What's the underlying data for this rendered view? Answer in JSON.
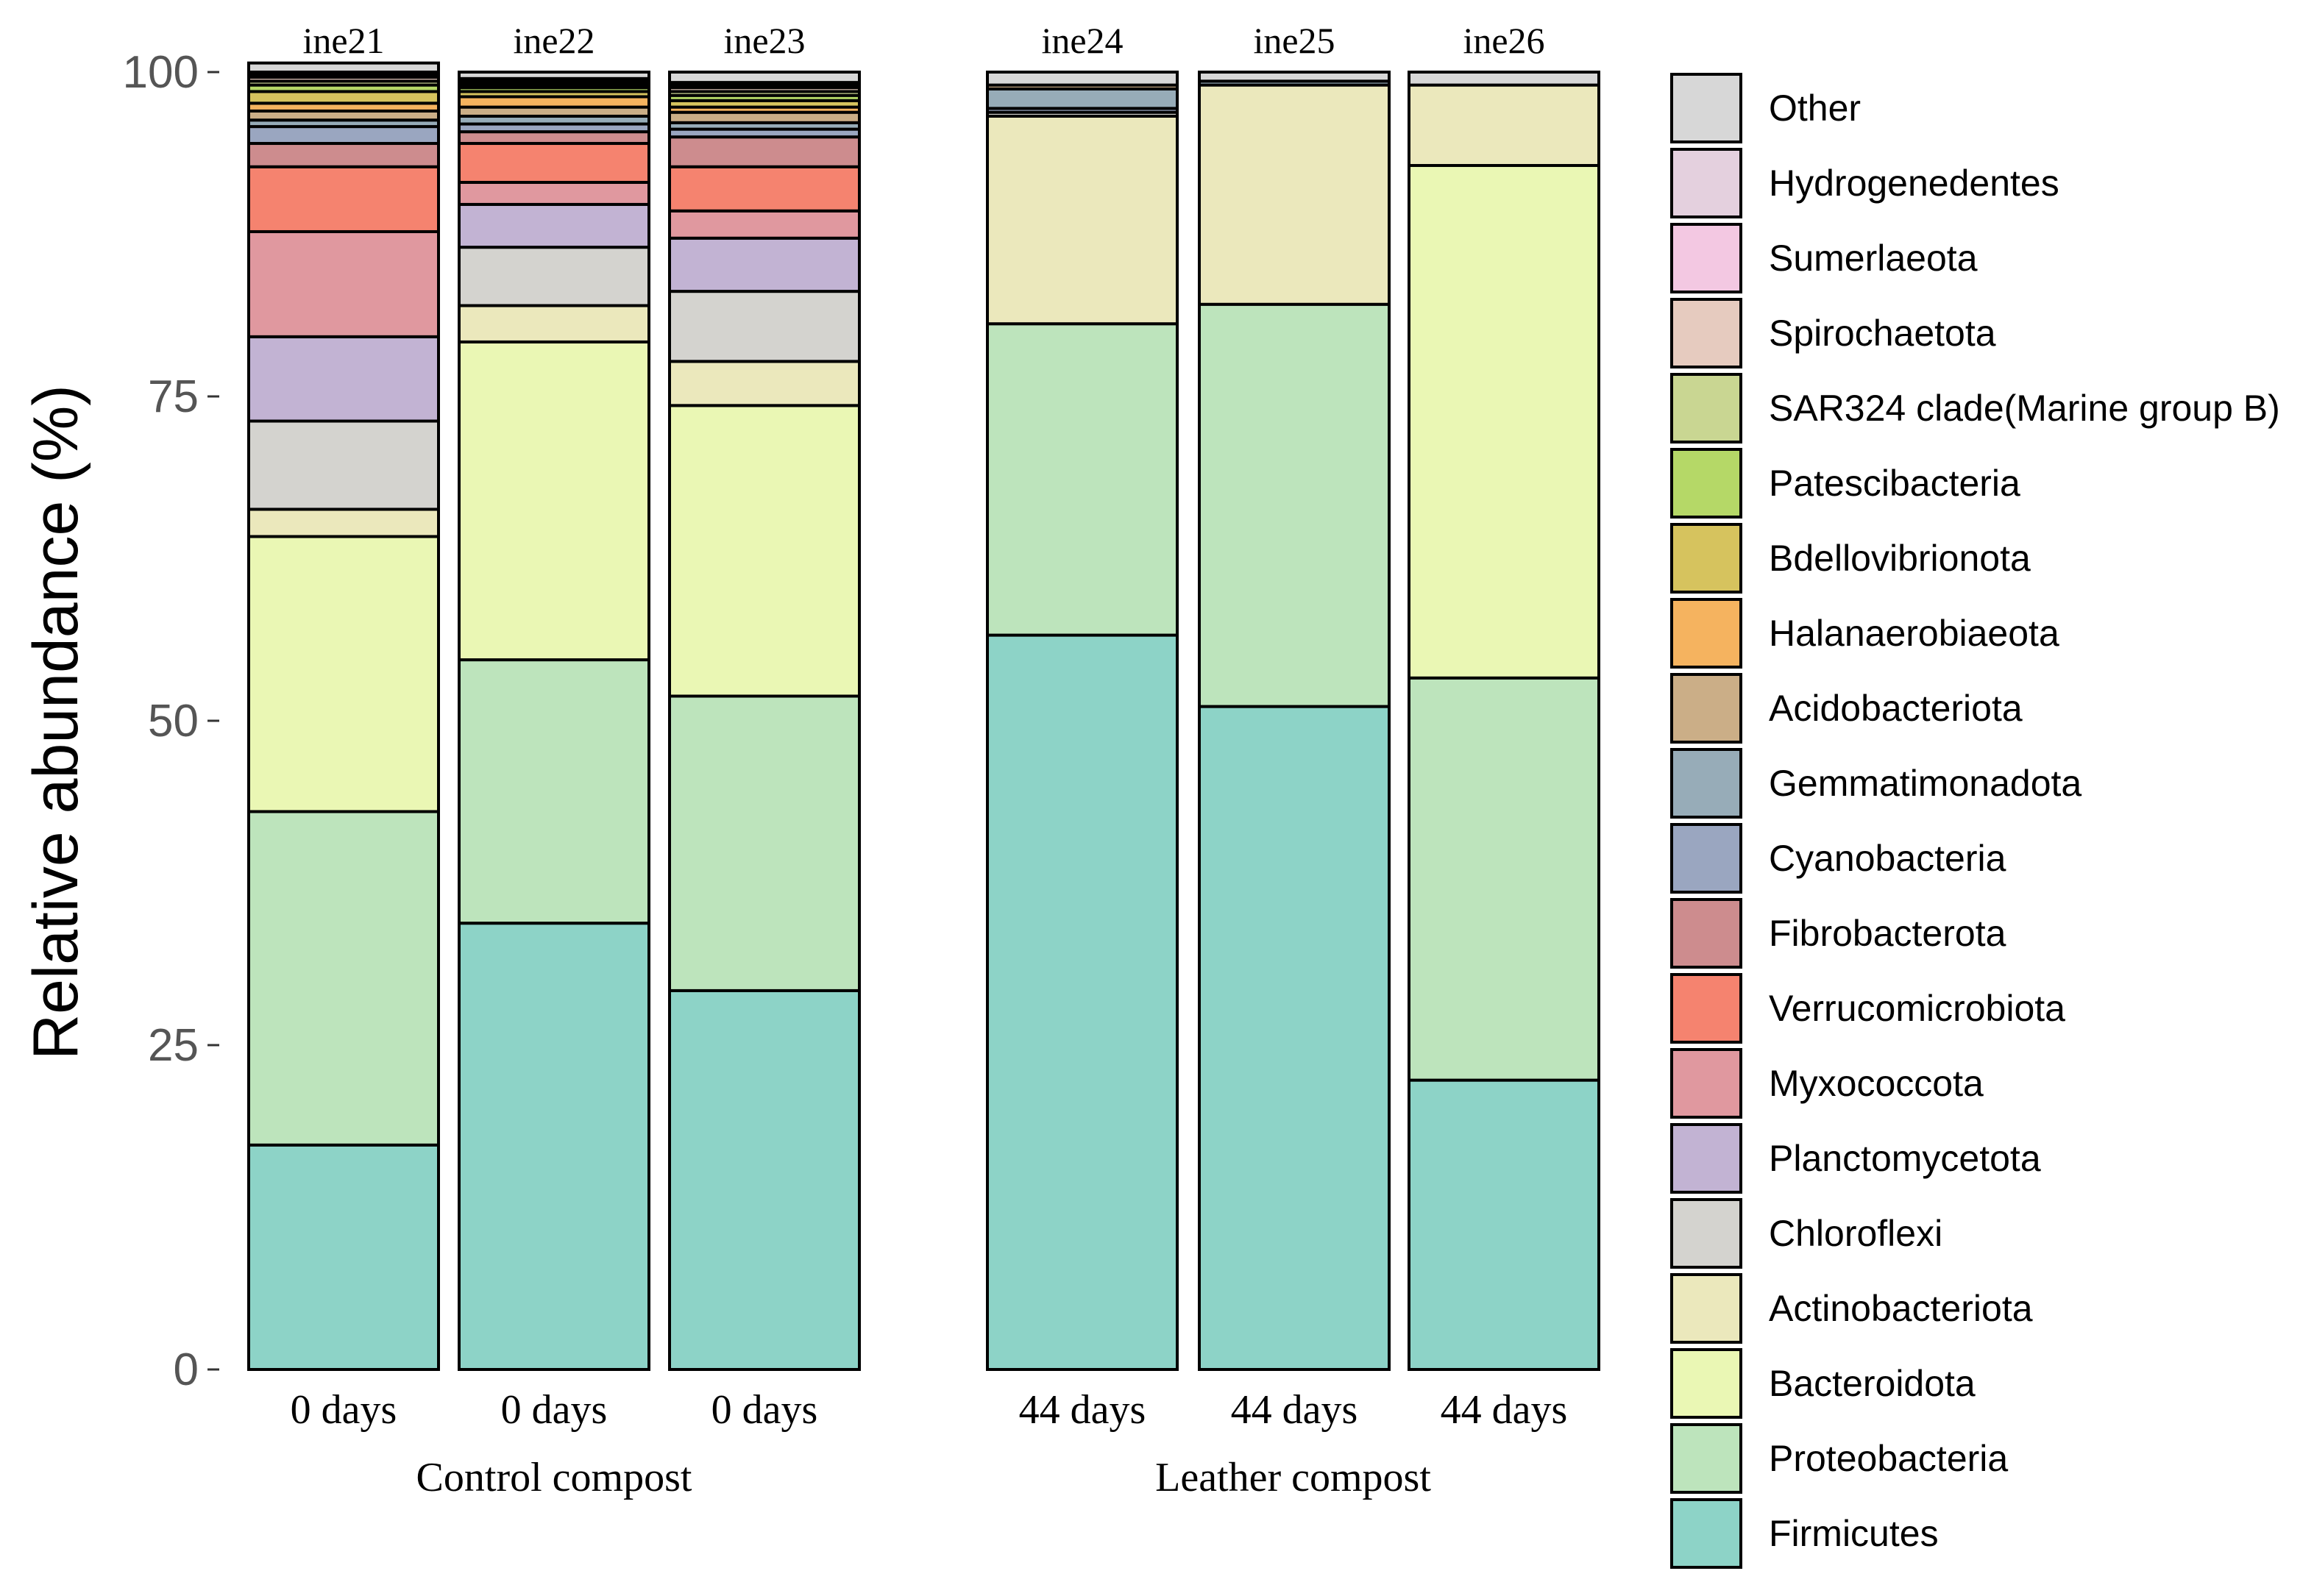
{
  "chart_data": {
    "type": "bar",
    "stacked": true,
    "ylabel": "Relative abundance (%)",
    "ylim": [
      0,
      100
    ],
    "yticks": [
      0,
      25,
      50,
      75,
      100
    ],
    "legend_position": "right",
    "samples": [
      {
        "name": "ine21",
        "time": "0 days",
        "group": "Control compost"
      },
      {
        "name": "ine22",
        "time": "0 days",
        "group": "Control compost"
      },
      {
        "name": "ine23",
        "time": "0 days",
        "group": "Control compost"
      },
      {
        "name": "ine24",
        "time": "44 days",
        "group": "Leather compost"
      },
      {
        "name": "ine25",
        "time": "44 days",
        "group": "Leather compost"
      },
      {
        "name": "ine26",
        "time": "44 days",
        "group": "Leather compost"
      }
    ],
    "groups": [
      "Control compost",
      "Leather compost"
    ],
    "series": [
      {
        "name": "Firmicutes",
        "color": "#8dd3c7",
        "values": [
          17.3,
          34.4,
          29.2,
          56.6,
          51.1,
          22.3
        ]
      },
      {
        "name": "Proteobacteria",
        "color": "#bde4bc",
        "values": [
          25.7,
          20.3,
          22.7,
          24.0,
          31.0,
          31.0
        ]
      },
      {
        "name": "Bacteroidota",
        "color": "#eaf7b4",
        "values": [
          21.2,
          24.5,
          22.4,
          0.0,
          0.0,
          39.5
        ]
      },
      {
        "name": "Actinobacteriota",
        "color": "#ebe8bc",
        "values": [
          2.1,
          2.8,
          3.4,
          16.0,
          16.9,
          6.2
        ]
      },
      {
        "name": "Chloroflexi",
        "color": "#d4d3cf",
        "values": [
          6.8,
          4.5,
          5.4,
          0.3,
          0.0,
          0.0
        ]
      },
      {
        "name": "Planctomycetota",
        "color": "#c2b3d3",
        "values": [
          6.5,
          3.3,
          4.1,
          0.0,
          0.0,
          0.0
        ]
      },
      {
        "name": "Myxococcota",
        "color": "#e0989f",
        "values": [
          8.1,
          1.7,
          2.1,
          0.0,
          0.0,
          0.0
        ]
      },
      {
        "name": "Verrucomicrobiota",
        "color": "#f5836f",
        "values": [
          5.0,
          3.0,
          3.4,
          0.0,
          0.0,
          0.0
        ]
      },
      {
        "name": "Fibrobacterota",
        "color": "#cd8c8e",
        "values": [
          1.8,
          0.9,
          2.3,
          0.0,
          0.0,
          0.0
        ]
      },
      {
        "name": "Cyanobacteria",
        "color": "#9aa6c0",
        "values": [
          1.3,
          0.6,
          0.6,
          0.3,
          0.0,
          0.0
        ]
      },
      {
        "name": "Gemmatimonadota",
        "color": "#97acb8",
        "values": [
          0.5,
          0.6,
          0.5,
          1.5,
          0.3,
          0.0
        ]
      },
      {
        "name": "Acidobacteriota",
        "color": "#cbae87",
        "values": [
          0.7,
          0.7,
          0.8,
          0.3,
          0.0,
          0.0
        ]
      },
      {
        "name": "Halanaerobiaeota",
        "color": "#f5b35f",
        "values": [
          0.6,
          0.8,
          0.4,
          0.0,
          0.0,
          0.0
        ]
      },
      {
        "name": "Bdellovibrionota",
        "color": "#d6c35e",
        "values": [
          0.9,
          0.4,
          0.5,
          0.0,
          0.0,
          0.0
        ]
      },
      {
        "name": "Patescibacteria",
        "color": "#b5d867",
        "values": [
          0.5,
          0.3,
          0.4,
          0.0,
          0.0,
          0.0
        ]
      },
      {
        "name": "SAR324 clade(Marine group B)",
        "color": "#c9d692",
        "values": [
          0.3,
          0.2,
          0.3,
          0.0,
          0.0,
          0.0
        ]
      },
      {
        "name": "Spirochaetota",
        "color": "#e6cbbf",
        "values": [
          0.3,
          0.2,
          0.3,
          0.0,
          0.0,
          0.0
        ]
      },
      {
        "name": "Sumerlaeota",
        "color": "#f3c8e2",
        "values": [
          0.2,
          0.2,
          0.2,
          0.0,
          0.0,
          0.0
        ]
      },
      {
        "name": "Hydrogenedentes",
        "color": "#e4d0de",
        "values": [
          0.2,
          0.1,
          0.2,
          0.0,
          0.0,
          0.0
        ]
      },
      {
        "name": "Other",
        "color": "#d7d7d7",
        "values": [
          0.7,
          0.5,
          0.8,
          1.0,
          0.7,
          1.0
        ]
      }
    ]
  }
}
